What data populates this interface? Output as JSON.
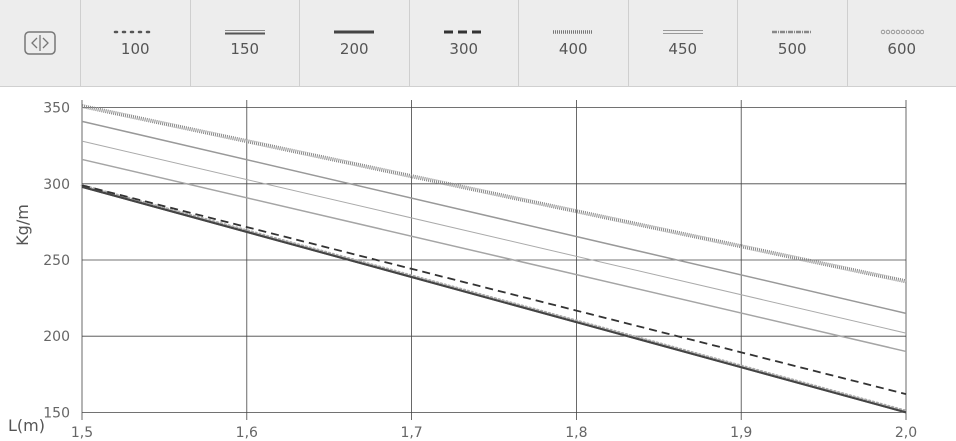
{
  "legend": {
    "toggle_icon": "split-view-icon",
    "items": [
      {
        "label": "100",
        "style": "dotted"
      },
      {
        "label": "150",
        "style": "double"
      },
      {
        "label": "200",
        "style": "solid"
      },
      {
        "label": "300",
        "style": "dashed"
      },
      {
        "label": "400",
        "style": "hatched"
      },
      {
        "label": "450",
        "style": "thin-double"
      },
      {
        "label": "500",
        "style": "dash-dot"
      },
      {
        "label": "600",
        "style": "circles"
      }
    ]
  },
  "chart_data": {
    "type": "line",
    "xlabel": "L(m)",
    "ylabel": "Kg/m",
    "xlim": [
      1.5,
      2.0
    ],
    "ylim": [
      145,
      355
    ],
    "xticks": [
      "1,5",
      "1,6",
      "1,7",
      "1,8",
      "1,9",
      "2,0"
    ],
    "yticks": [
      "150",
      "200",
      "250",
      "300",
      "350"
    ],
    "grid": true,
    "series": [
      {
        "name": "100",
        "x": [
          1.5,
          2.0
        ],
        "y": [
          299,
          151
        ],
        "color": "#aaaaaa"
      },
      {
        "name": "150",
        "x": [
          1.5,
          2.0
        ],
        "y": [
          298,
          150
        ],
        "color": "#777777"
      },
      {
        "name": "200",
        "x": [
          1.5,
          2.0
        ],
        "y": [
          298,
          150
        ],
        "color": "#444444"
      },
      {
        "name": "300",
        "x": [
          1.5,
          2.0
        ],
        "y": [
          299,
          162
        ],
        "color": "#333333"
      },
      {
        "name": "400",
        "x": [
          1.5,
          2.0
        ],
        "y": [
          351,
          236
        ],
        "color": "#888888"
      },
      {
        "name": "450",
        "x": [
          1.5,
          2.0
        ],
        "y": [
          328,
          202
        ],
        "color": "#aaaaaa"
      },
      {
        "name": "500",
        "x": [
          1.5,
          2.0
        ],
        "y": [
          341,
          215
        ],
        "color": "#999999"
      },
      {
        "name": "600",
        "x": [
          1.5,
          2.0
        ],
        "y": [
          316,
          190
        ],
        "color": "#a5a5a5"
      }
    ]
  }
}
